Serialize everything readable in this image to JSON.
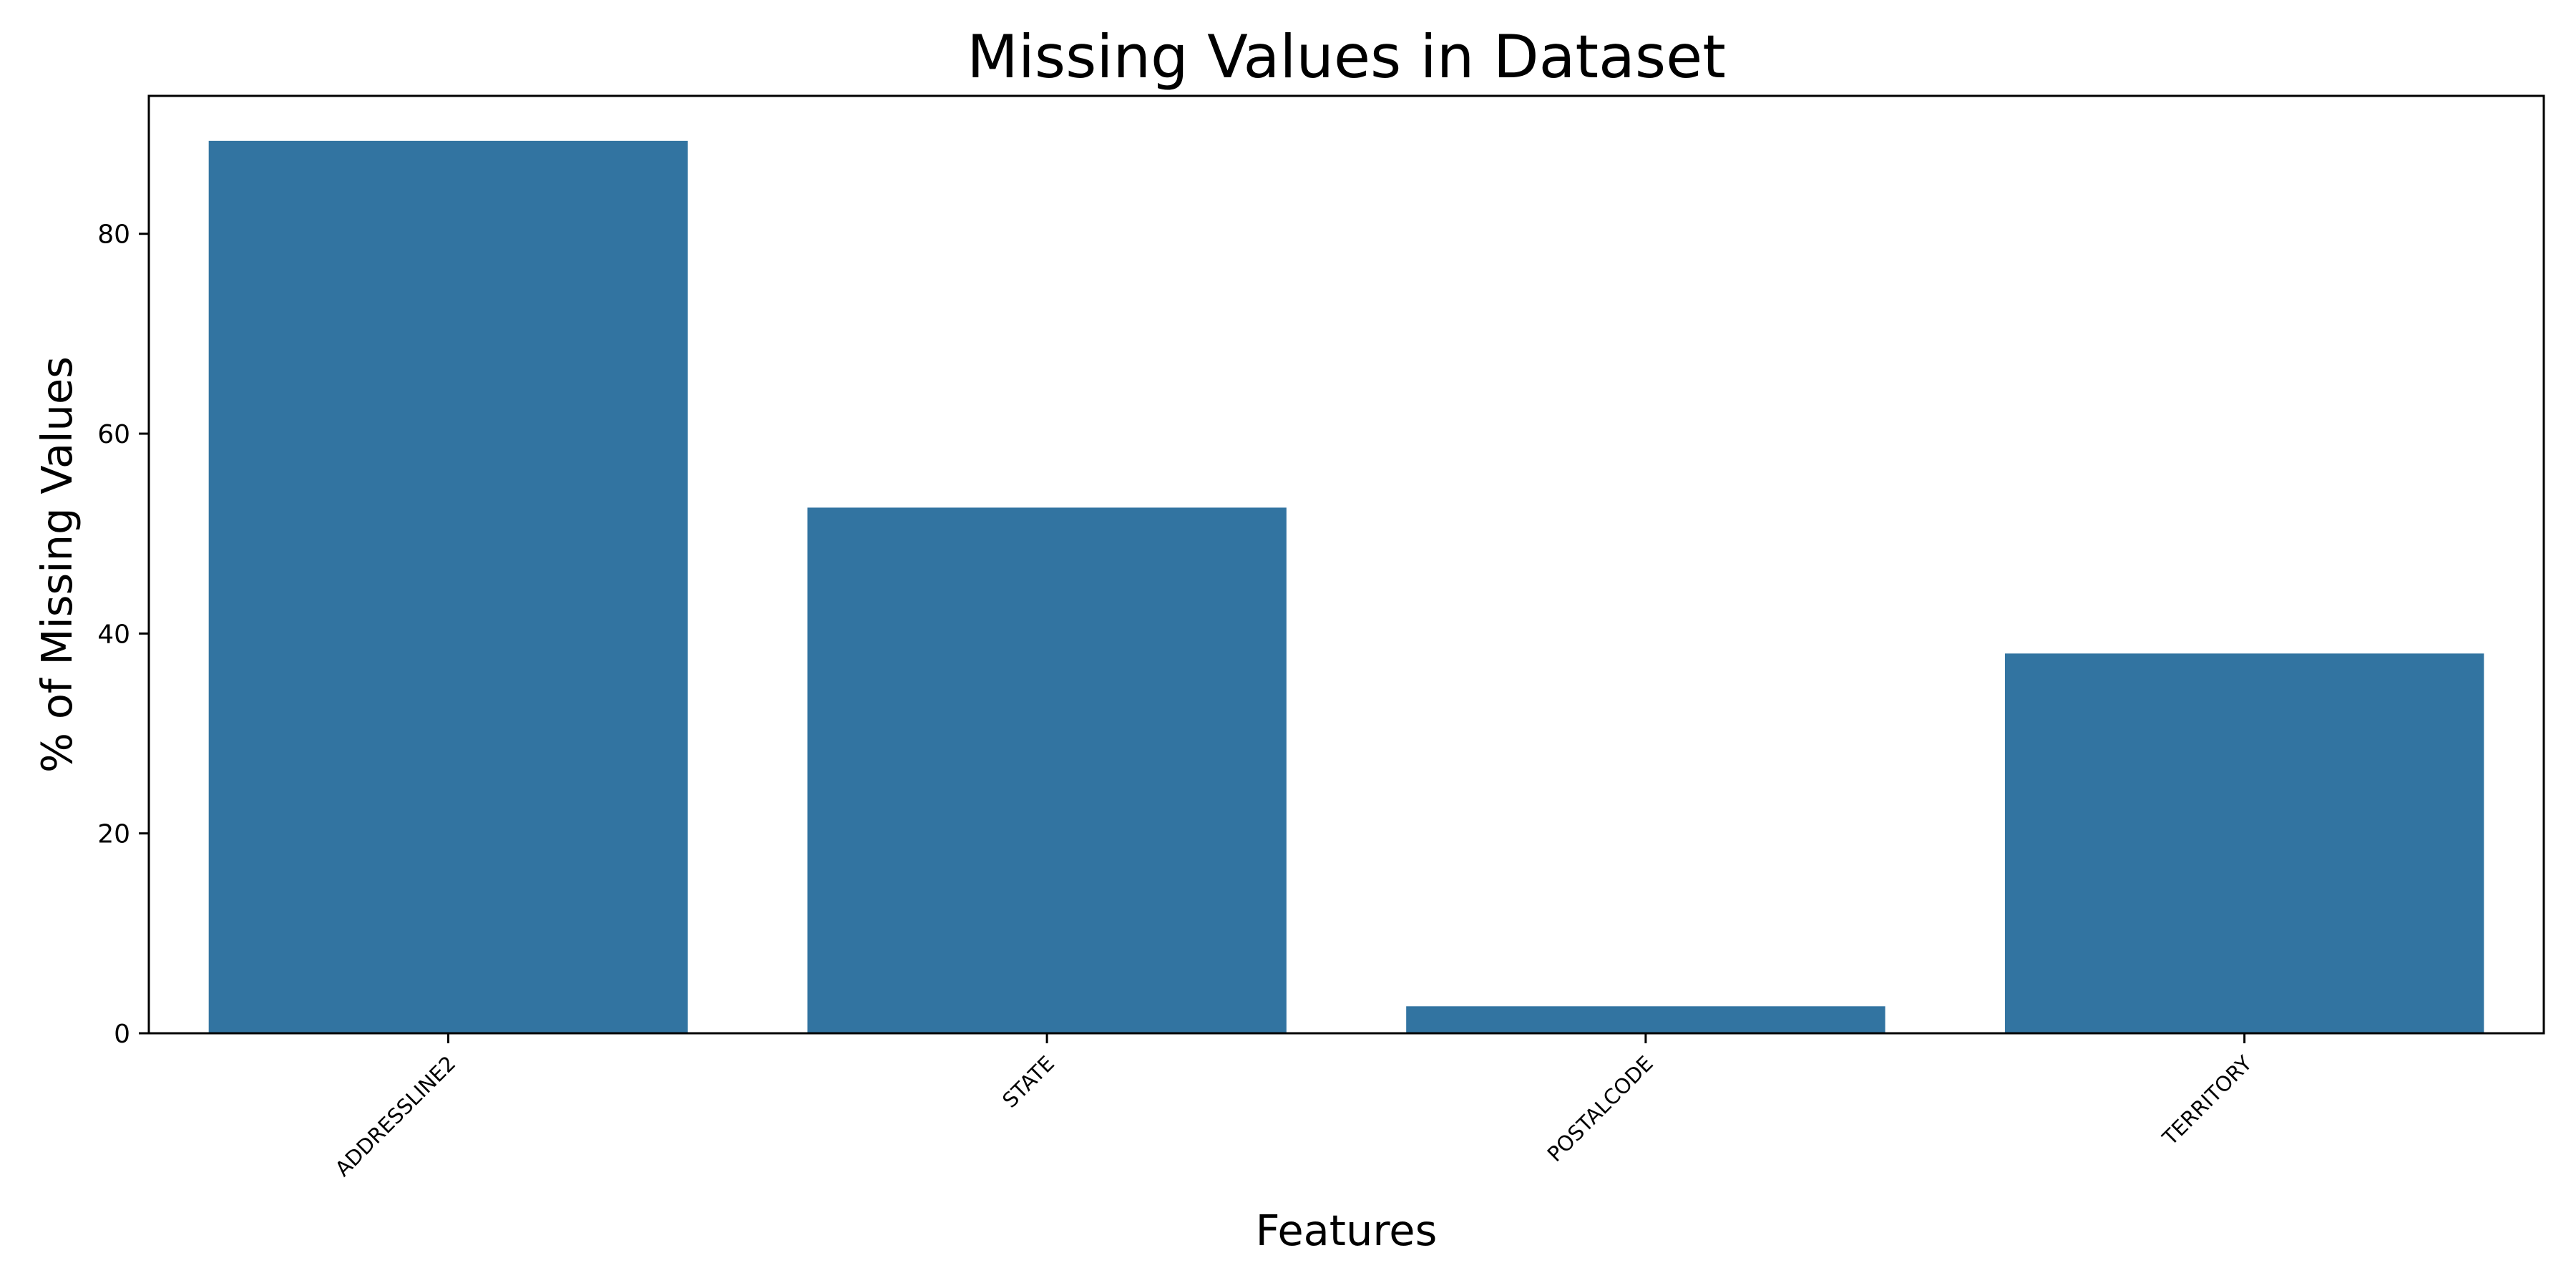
{
  "chart_data": {
    "type": "bar",
    "title": "Missing Values in Dataset",
    "xlabel": "Features",
    "ylabel": "% of Missing Values",
    "categories": [
      "ADDRESSLINE2",
      "STATE",
      "POSTALCODE",
      "TERRITORY"
    ],
    "values": [
      89.3,
      52.6,
      2.7,
      38.0
    ],
    "ylim": [
      0,
      93.8
    ],
    "yticks": [
      0,
      20,
      40,
      60,
      80
    ],
    "ytick_labels": [
      "0",
      "20",
      "40",
      "60",
      "80"
    ],
    "x_tick_rotation": "45 degrees",
    "grid": false,
    "legend": "none",
    "bar_color": "#3274a1"
  }
}
